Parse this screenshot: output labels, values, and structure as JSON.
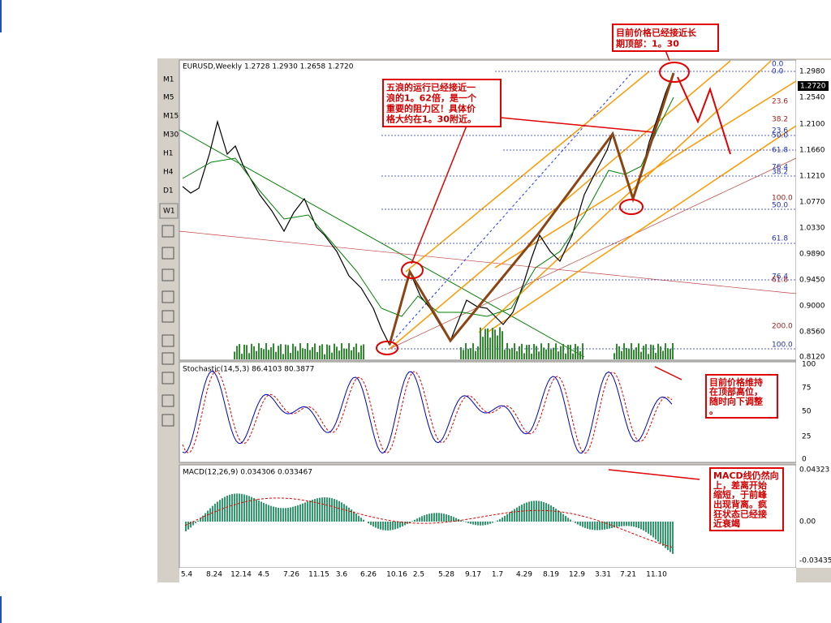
{
  "toolbar": {
    "timeframes": [
      "M1",
      "M5",
      "M15",
      "M30",
      "H1",
      "H4",
      "D1",
      "W1"
    ]
  },
  "main_chart": {
    "header": "EURUSD,Weekly  1.2728 1.2930 1.2658 1.2720",
    "current_price": "1.2720",
    "price_labels": [
      "1.2980",
      "1.2540",
      "1.2100",
      "1.1660",
      "1.1210",
      "1.0770",
      "1.0330",
      "0.9890",
      "0.9450",
      "0.9000",
      "0.8560",
      "0.8120"
    ],
    "fib_labels": [
      "0.0",
      "0.0",
      "23.6",
      "38.2",
      "23.6",
      "50.0",
      "61.8",
      "76.4",
      "38.2",
      "100.0",
      "50.0",
      "61.8",
      "76.4",
      "61.8",
      "200.0",
      "100.0"
    ]
  },
  "stochastic": {
    "header": "Stochastic(14,5,3) 86.4103 80.3877",
    "labels": [
      "100",
      "75",
      "50",
      "25",
      "0"
    ]
  },
  "macd": {
    "header": "MACD(12,26,9) 0.034306 0.033467",
    "labels": [
      "0.04323",
      "0.00",
      "-0.03435"
    ]
  },
  "x_axis": {
    "labels": [
      "5.4",
      "8.24",
      "12.14",
      "4.5",
      "7.26",
      "11.15",
      "3.6",
      "6.26",
      "10.16",
      "2.5",
      "5.28",
      "9.17",
      "1.7",
      "4.29",
      "8.19",
      "12.9",
      "3.31",
      "7.21",
      "11.10"
    ]
  },
  "annotations": [
    {
      "lines": [
        "目前价格已经接近长",
        "期顶部：1。30"
      ]
    },
    {
      "lines": [
        "五浪的运行已经接近一",
        "浪的1。62倍，是一个",
        "重要的阻力区！具体价",
        "格大约在1。30附近。"
      ]
    },
    {
      "lines": [
        "目前价格维持",
        "在顶部高位，",
        "随时向下调整",
        "。"
      ]
    },
    {
      "lines": [
        "MACD线仍然向",
        "上，差离开始",
        "缩短，于前峰",
        "出现背离。疯",
        "狂状态已经接",
        "近衰竭"
      ]
    }
  ]
}
